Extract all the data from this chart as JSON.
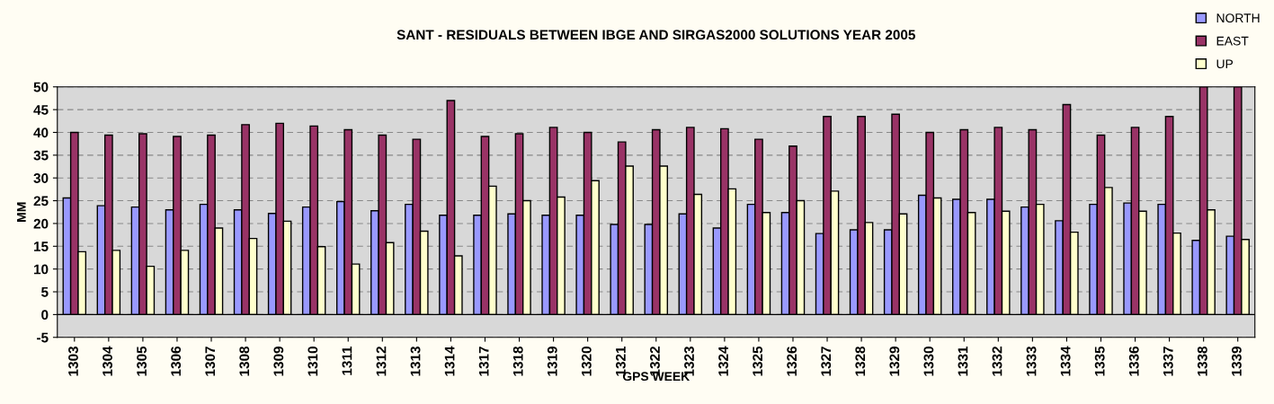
{
  "chart_data": {
    "type": "bar",
    "title": "SANT - RESIDUALS BETWEEN IBGE AND SIRGAS2000 SOLUTIONS YEAR 2005",
    "xlabel": "GPS WEEK",
    "ylabel": "MM",
    "categories": [
      "1303",
      "1304",
      "1305",
      "1306",
      "1307",
      "1308",
      "1309",
      "1310",
      "1311",
      "1312",
      "1313",
      "1314",
      "1317",
      "1318",
      "1319",
      "1320",
      "1321",
      "1322",
      "1323",
      "1324",
      "1325",
      "1326",
      "1327",
      "1328",
      "1329",
      "1330",
      "1331",
      "1332",
      "1333",
      "1334",
      "1335",
      "1336",
      "1337",
      "1338",
      "1339"
    ],
    "series": [
      {
        "name": "NORTH",
        "color": "#9999ff",
        "values": [
          25.6,
          23.9,
          23.6,
          23.0,
          24.2,
          23.0,
          22.2,
          23.6,
          24.8,
          22.8,
          24.2,
          21.8,
          21.8,
          22.1,
          21.8,
          21.8,
          19.8,
          19.8,
          22.1,
          19.0,
          24.2,
          22.4,
          17.8,
          18.6,
          18.6,
          26.2,
          25.3,
          25.3,
          23.6,
          20.6,
          24.2,
          24.5,
          24.2,
          16.3,
          17.2
        ]
      },
      {
        "name": "EAST",
        "color": "#993366",
        "values": [
          40,
          39.4,
          39.7,
          39.1,
          39.4,
          41.7,
          42.0,
          41.4,
          40.6,
          39.4,
          38.5,
          47.0,
          39.1,
          39.7,
          41.1,
          40.0,
          37.9,
          40.6,
          41.1,
          40.8,
          38.5,
          37.0,
          43.5,
          43.5,
          44.0,
          40.0,
          40.6,
          41.1,
          40.6,
          46.1,
          39.4,
          41.1,
          43.5,
          50,
          50
        ]
      },
      {
        "name": "UP",
        "color": "#ffffcc",
        "values": [
          13.8,
          14.1,
          10.6,
          14.1,
          19.0,
          16.7,
          20.5,
          14.9,
          11.1,
          15.8,
          18.3,
          12.9,
          28.2,
          25.0,
          25.8,
          29.4,
          32.6,
          32.6,
          26.4,
          27.6,
          22.4,
          25.0,
          27.1,
          20.2,
          22.1,
          25.6,
          22.4,
          22.7,
          24.2,
          18.1,
          27.9,
          22.7,
          17.9,
          23.0,
          16.5
        ]
      }
    ],
    "ylim": [
      -5,
      50
    ],
    "yticks": [
      -5,
      0,
      5,
      10,
      15,
      20,
      25,
      30,
      35,
      40,
      45,
      50
    ],
    "grid": "y",
    "legend": "top right"
  }
}
